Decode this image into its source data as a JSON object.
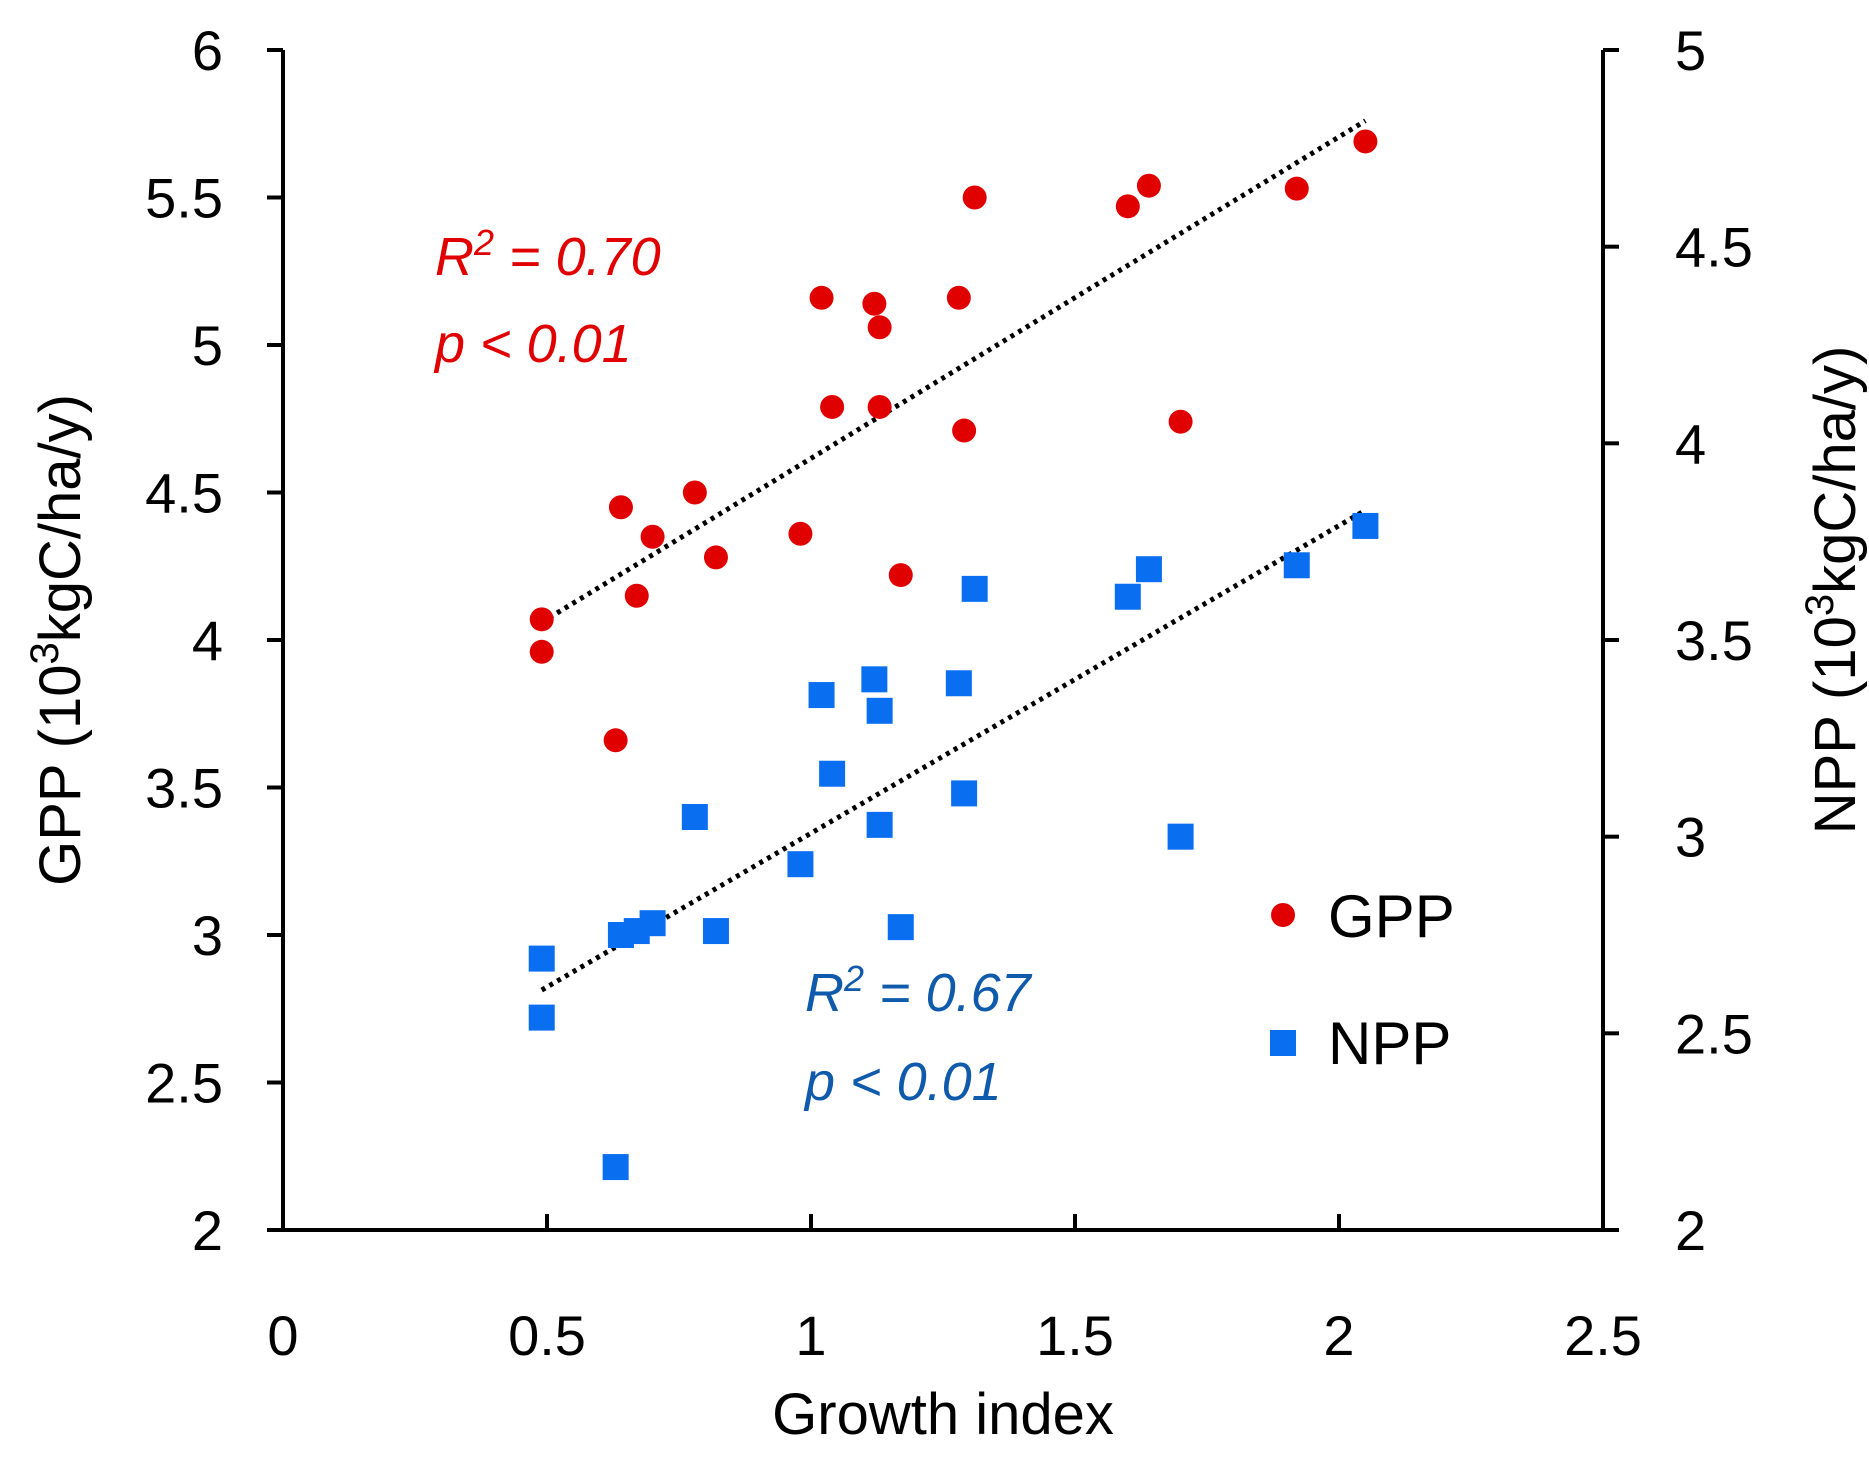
{
  "chart_data": {
    "type": "scatter",
    "title": "",
    "xlabel": "Growth index",
    "ylabel_left": {
      "prefix": "GPP (10",
      "sup": "3",
      "suffix": "kgC/ha/y)"
    },
    "ylabel_right": {
      "prefix": "NPP (10",
      "sup": "3",
      "suffix": "kgC/ha/y)"
    },
    "xlim": [
      0,
      2.5
    ],
    "ylim_left": [
      2,
      6
    ],
    "ylim_right": [
      2,
      5
    ],
    "x_ticks": [
      0,
      0.5,
      1,
      1.5,
      2,
      2.5
    ],
    "x_tick_labels": [
      "0",
      "0.5",
      "1",
      "1.5",
      "2",
      "2.5"
    ],
    "y_left_ticks": [
      2,
      2.5,
      3,
      3.5,
      4,
      4.5,
      5,
      5.5,
      6
    ],
    "y_left_tick_labels": [
      "2",
      "2.5",
      "3",
      "3.5",
      "4",
      "4.5",
      "5",
      "5.5",
      "6"
    ],
    "y_right_ticks": [
      2,
      2.5,
      3,
      3.5,
      4,
      4.5,
      5
    ],
    "y_right_tick_labels": [
      "2",
      "2.5",
      "3",
      "3.5",
      "4",
      "4.5",
      "5"
    ],
    "series": [
      {
        "name": "GPP",
        "axis": "left",
        "marker": "circle",
        "color": "#e00000",
        "x": [
          0.49,
          0.49,
          0.63,
          0.64,
          0.67,
          0.7,
          0.78,
          0.82,
          0.98,
          1.02,
          1.04,
          1.12,
          1.13,
          1.13,
          1.17,
          1.28,
          1.29,
          1.31,
          1.6,
          1.64,
          1.7,
          1.92,
          2.05
        ],
        "y": [
          4.07,
          3.96,
          3.66,
          4.45,
          4.15,
          4.35,
          4.5,
          4.28,
          4.36,
          5.16,
          4.79,
          5.14,
          5.06,
          4.79,
          4.22,
          5.16,
          4.71,
          5.5,
          5.47,
          5.54,
          4.74,
          5.53,
          5.69
        ],
        "trend": {
          "x": [
            0.49,
            2.05
          ],
          "y": [
            4.06,
            5.76
          ]
        },
        "r2_label": "R",
        "r2_sup": "2",
        "r2_value": " = 0.70",
        "p_label": "p < 0.01"
      },
      {
        "name": "NPP",
        "axis": "right",
        "marker": "square",
        "color": "#0a6ef0",
        "x": [
          0.49,
          0.49,
          0.63,
          0.64,
          0.67,
          0.7,
          0.78,
          0.82,
          0.98,
          1.02,
          1.04,
          1.12,
          1.13,
          1.13,
          1.17,
          1.28,
          1.29,
          1.31,
          1.6,
          1.64,
          1.7,
          1.92,
          2.05
        ],
        "y": [
          2.69,
          2.54,
          2.16,
          2.75,
          2.76,
          2.78,
          3.05,
          2.76,
          2.93,
          3.36,
          3.16,
          3.4,
          3.32,
          3.03,
          2.77,
          3.39,
          3.11,
          3.63,
          3.61,
          3.68,
          3.0,
          3.69,
          3.79
        ],
        "trend": {
          "x": [
            0.49,
            2.05
          ],
          "y": [
            2.61,
            3.83
          ]
        },
        "r2_label": "R",
        "r2_sup": "2",
        "r2_value": " = 0.67",
        "p_label": "p < 0.01"
      }
    ],
    "legend": {
      "position": "lower-right",
      "items": [
        "GPP",
        "NPP"
      ]
    },
    "annotation_colors": {
      "gpp": "#e00000",
      "npp": "#0f5aaa"
    },
    "grid": false
  }
}
